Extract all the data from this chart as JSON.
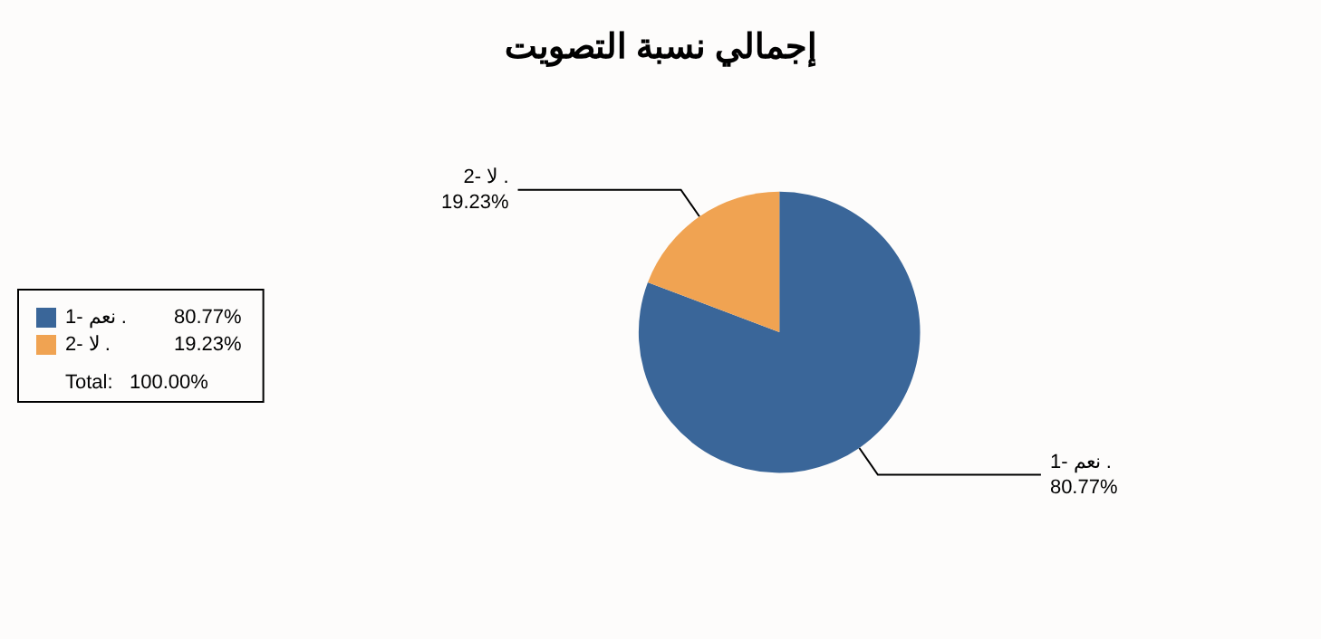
{
  "chart_data": {
    "type": "pie",
    "title": "إجمالي نسبة التصويت",
    "categories": [
      "1- نعم .",
      "2- لا ."
    ],
    "values": [
      80.77,
      19.23
    ],
    "value_labels": [
      "80.77%",
      "19.23%"
    ],
    "colors": [
      "#3a6699",
      "#f0a352"
    ],
    "legend": "left",
    "annotations": [
      "Total:   100.00%"
    ]
  }
}
